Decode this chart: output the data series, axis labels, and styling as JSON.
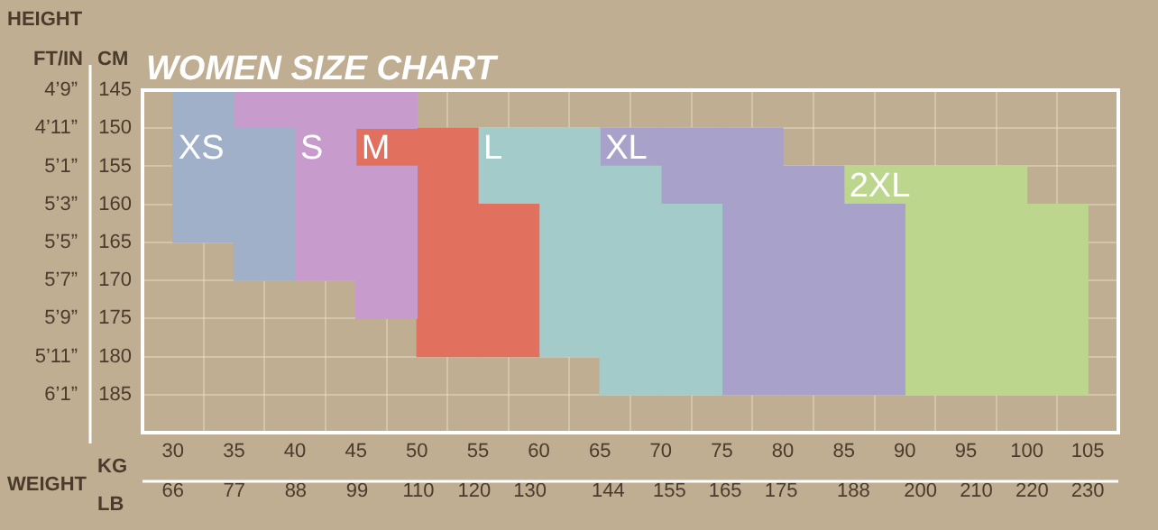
{
  "chart_data": {
    "type": "bar",
    "title": "WOMEN SIZE CHART",
    "xlabel": "KG",
    "x2label": "LB",
    "ylabel": "CM",
    "y2label": "FT/IN",
    "annotations": [
      "HEIGHT",
      "WEIGHT"
    ],
    "series": [
      {
        "name": "XS",
        "color": "#9fb0c8",
        "x": [
          32.5,
          37.5
        ],
        "base": [
          145,
          150
        ],
        "values": [
          20,
          20
        ]
      },
      {
        "name": "S",
        "color": "#c79ccc",
        "x": [
          37.5,
          42.5,
          47.5
        ],
        "base": [
          145,
          145,
          155
        ],
        "values": [
          5,
          25,
          20
        ]
      },
      {
        "color": "#c79ccc",
        "x": [
          47.5
        ],
        "base": [
          145
        ],
        "values": [
          5
        ]
      },
      {
        "name": "M",
        "color": "#e2705f",
        "x": [
          47.5,
          52.5,
          57.5
        ],
        "base": [
          150,
          150,
          160
        ],
        "values": [
          5,
          30,
          20
        ]
      },
      {
        "name": "L",
        "color": "#a3cbc9",
        "x": [
          57.5,
          62.5,
          67.5,
          72.5
        ],
        "base": [
          150,
          150,
          155,
          160
        ],
        "values": [
          10,
          30,
          30,
          25
        ]
      },
      {
        "name": "XL",
        "color": "#a8a2ca",
        "x": [
          67.5,
          72.5,
          77.5,
          82.5,
          87.5
        ],
        "base": [
          150,
          150,
          150,
          155,
          160
        ],
        "values": [
          5,
          10,
          35,
          30,
          25
        ]
      },
      {
        "name": "2XL",
        "color": "#bcd68e",
        "x": [
          87.5,
          92.5,
          97.5,
          102.5
        ],
        "base": [
          155,
          155,
          155,
          160
        ],
        "values": [
          5,
          30,
          30,
          25
        ]
      }
    ],
    "xlim": [
      30,
      105
    ],
    "xticks": [
      30,
      35,
      40,
      45,
      50,
      55,
      60,
      65,
      70,
      75,
      80,
      85,
      90,
      95,
      100,
      105
    ],
    "x2lim": [
      66,
      230
    ],
    "x2ticks": [
      66,
      77,
      88,
      99,
      110,
      120,
      130,
      144,
      155,
      165,
      175,
      188,
      200,
      210,
      220,
      230
    ],
    "ylim": [
      190,
      145
    ],
    "yticks": [
      145,
      150,
      155,
      160,
      165,
      170,
      175,
      180,
      185
    ],
    "y2_categories": [
      "4’9”",
      "4’11”",
      "5’1”",
      "5’3”",
      "5’5”",
      "5’7”",
      "5’9”",
      "5’11”",
      "6’1”"
    ],
    "grid": true,
    "legend": false
  }
}
